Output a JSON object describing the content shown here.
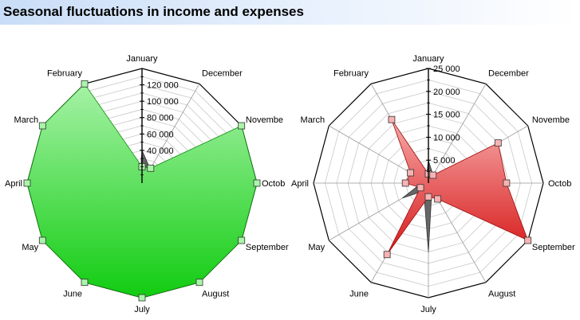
{
  "title": "Seasonal fluctuations in income and expenses",
  "chart_data": [
    {
      "type": "radar",
      "categories": [
        "January",
        "December",
        "November",
        "October",
        "September",
        "August",
        "July",
        "June",
        "May",
        "April",
        "March",
        "February"
      ],
      "category_labels": [
        "January",
        "December",
        "Novembe",
        "Octob",
        "September",
        "August",
        "July",
        "June",
        "May",
        "April",
        "March",
        "February"
      ],
      "rmax": 140000,
      "ticks": [
        40000,
        60000,
        80000,
        100000,
        120000
      ],
      "tick_labels": [
        "40 000",
        "60 000",
        "80 000",
        "100 000",
        "120 000"
      ],
      "ring_count": 14,
      "series": [
        {
          "values": [
            40000,
            20000,
            30000,
            30000,
            10000,
            25000,
            25000,
            5000,
            5000,
            5000,
            5000,
            5000
          ],
          "fill": "#666666",
          "markers": false
        },
        {
          "values": [
            20000,
            21000,
            141000,
            141000,
            140000,
            140000,
            140000,
            140000,
            140000,
            140000,
            140000,
            140000
          ],
          "fill": "green",
          "markers": true
        }
      ]
    },
    {
      "type": "radar",
      "categories": [
        "January",
        "December",
        "November",
        "October",
        "September",
        "August",
        "July",
        "June",
        "May",
        "April",
        "March",
        "February"
      ],
      "category_labels": [
        "January",
        "December",
        "Novembe",
        "Octob",
        "September",
        "August",
        "July",
        "June",
        "May",
        "April",
        "March",
        "February"
      ],
      "rmax": 25000,
      "ticks": [
        5000,
        10000,
        15000,
        20000,
        25000
      ],
      "tick_labels": [
        "5 000",
        "10 000",
        "15 000",
        "20 000",
        "25 000"
      ],
      "ring_count": 10,
      "series": [
        {
          "values": [
            5000,
            2000,
            2000,
            1000,
            1000,
            1500,
            15000,
            2000,
            6500,
            1500,
            1000,
            1000
          ],
          "fill": "#666666",
          "markers": false
        },
        {
          "values": [
            2000,
            2000,
            17500,
            17000,
            26000,
            4000,
            3000,
            18000,
            2000,
            5000,
            4500,
            16000
          ],
          "fill": "red",
          "markers": true
        }
      ]
    }
  ]
}
